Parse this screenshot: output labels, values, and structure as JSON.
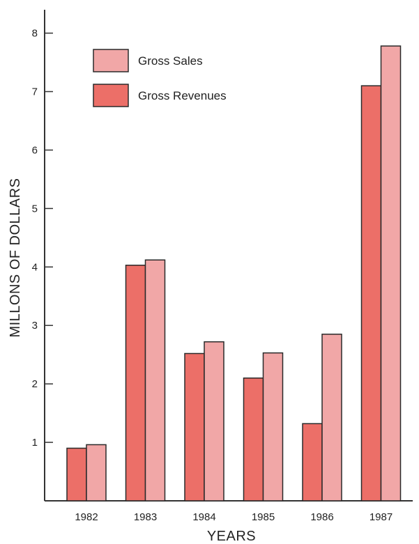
{
  "chart_data": {
    "type": "bar",
    "title": "",
    "xlabel": "YEARS",
    "ylabel": "MILLONS OF DOLLARS",
    "categories": [
      "1982",
      "1983",
      "1984",
      "1985",
      "1986",
      "1987"
    ],
    "series": [
      {
        "name": "Gross Revenues",
        "values": [
          0.9,
          4.03,
          2.52,
          2.1,
          1.32,
          7.1
        ],
        "color": "#ec6f68"
      },
      {
        "name": "Gross Sales",
        "values": [
          0.96,
          4.12,
          2.72,
          2.53,
          2.85,
          7.78
        ],
        "color": "#f1a7a7"
      }
    ],
    "ylim": [
      0,
      8.4
    ],
    "yticks": [
      "1",
      "2",
      "3",
      "4",
      "5",
      "6",
      "7",
      "8"
    ],
    "legend_order": [
      "Gross Sales",
      "Gross Revenues"
    ],
    "legend_position": "top-left",
    "grid": false
  }
}
